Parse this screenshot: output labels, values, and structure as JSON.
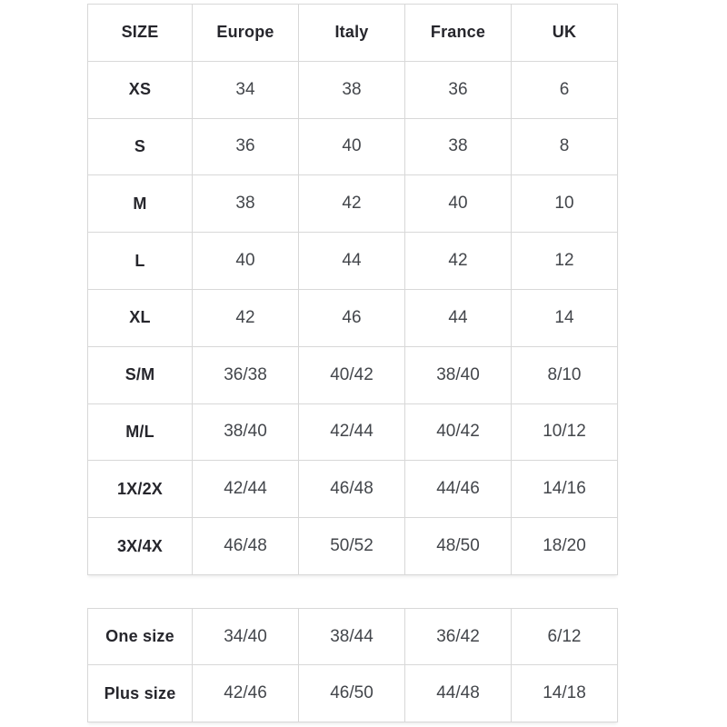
{
  "colors": {
    "background": "#ffffff",
    "border": "#d8d8d8",
    "label_text": "#26262c",
    "value_text": "#43464b"
  },
  "chart_data": [
    {
      "type": "table",
      "columns": [
        "SIZE",
        "Europe",
        "Italy",
        "France",
        "UK"
      ],
      "rows": [
        [
          "XS",
          "34",
          "38",
          "36",
          "6"
        ],
        [
          "S",
          "36",
          "40",
          "38",
          "8"
        ],
        [
          "M",
          "38",
          "42",
          "40",
          "10"
        ],
        [
          "L",
          "40",
          "44",
          "42",
          "12"
        ],
        [
          "XL",
          "42",
          "46",
          "44",
          "14"
        ],
        [
          "S/M",
          "36/38",
          "40/42",
          "38/40",
          "8/10"
        ],
        [
          "M/L",
          "38/40",
          "42/44",
          "40/42",
          "10/12"
        ],
        [
          "1X/2X",
          "42/44",
          "46/48",
          "44/46",
          "14/16"
        ],
        [
          "3X/4X",
          "46/48",
          "50/52",
          "48/50",
          "18/20"
        ]
      ],
      "layout": {
        "grid": true,
        "header_row": true,
        "bold_first_column": true
      }
    },
    {
      "type": "table",
      "columns": [],
      "rows": [
        [
          "One size",
          "34/40",
          "38/44",
          "36/42",
          "6/12"
        ],
        [
          "Plus size",
          "42/46",
          "46/50",
          "44/48",
          "14/18"
        ]
      ],
      "layout": {
        "grid": true,
        "header_row": false,
        "bold_first_column": true
      }
    }
  ]
}
